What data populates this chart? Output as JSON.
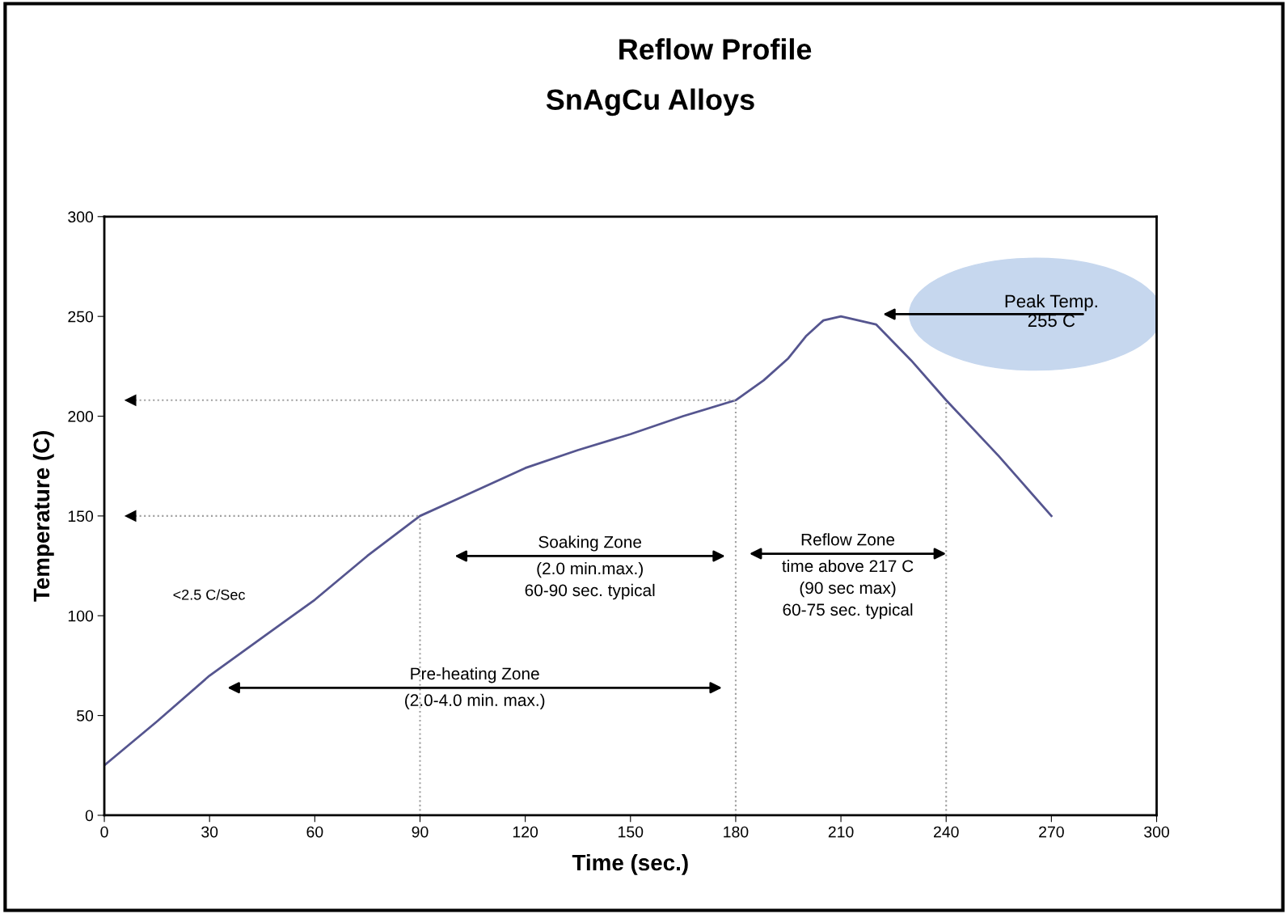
{
  "chart_data": {
    "type": "line",
    "title": "Reflow Profile",
    "subtitle": "SnAgCu Alloys",
    "xlabel": "Time (sec.)",
    "ylabel": "Temperature (C)",
    "x": [
      0,
      15,
      30,
      45,
      60,
      75,
      90,
      100,
      120,
      135,
      150,
      165,
      180,
      188,
      195,
      200,
      205,
      210,
      220,
      230,
      240,
      255,
      262,
      270
    ],
    "series": [
      {
        "color": "#55558f",
        "values": [
          25,
          47,
          70,
          89,
          108,
          130,
          150,
          158,
          174,
          183,
          191,
          200,
          208,
          218,
          229,
          240,
          248,
          250,
          246,
          228,
          208,
          180,
          166,
          150
        ]
      }
    ],
    "xlim": [
      0,
      300
    ],
    "xticks": [
      0,
      30,
      60,
      90,
      120,
      150,
      180,
      210,
      240,
      270,
      300
    ],
    "ylim": [
      0,
      300
    ],
    "yticks": [
      0,
      50,
      100,
      150,
      200,
      250,
      300
    ],
    "ref_lines": [
      {
        "axis": "x",
        "value": 90,
        "color": "#a0a0a0",
        "line_style": "dotted"
      },
      {
        "axis": "x",
        "value": 180,
        "color": "#a0a0a0",
        "line_style": "dotted"
      },
      {
        "axis": "x",
        "value": 240,
        "color": "#a0a0a0",
        "line_style": "dotted"
      },
      {
        "axis": "y",
        "value": 150,
        "color": "#a0a0a0",
        "line_style": "dotted"
      },
      {
        "axis": "y",
        "value": 208,
        "color": "#a0a0a0",
        "line_style": "dotted"
      }
    ],
    "annotations": [
      "<2.5 C/Sec",
      "Peak Temp.\n255 C",
      "Soaking Zone\n(2.0 min.max.)\n60-90 sec. typical",
      "Reflow Zone\ntime above 217 C\n(90 sec max)\n60-75 sec. typical",
      "Pre-heating Zone\n(2.0-4.0 min. max.)"
    ]
  }
}
